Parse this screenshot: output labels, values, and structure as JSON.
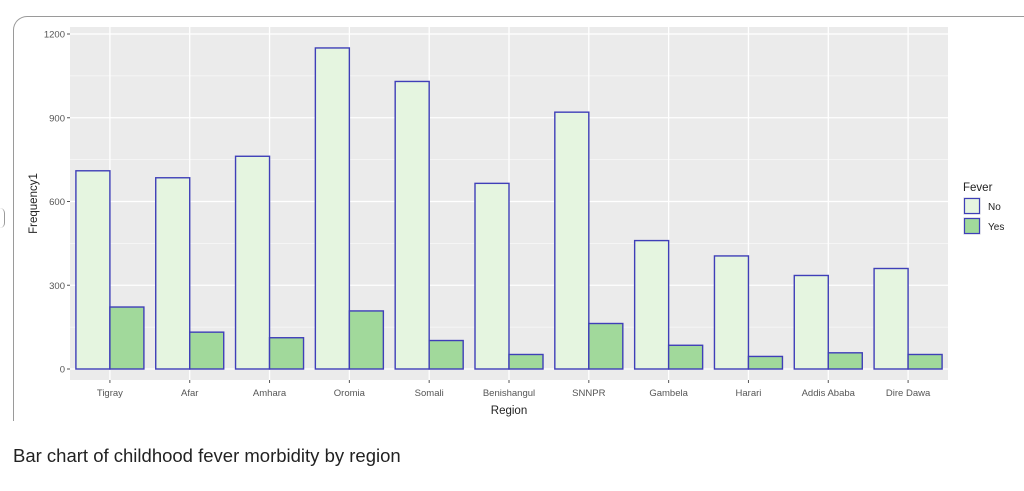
{
  "caption": "Bar chart of childhood fever morbidity by region",
  "chart_data": {
    "type": "bar",
    "title": "",
    "xlabel": "Region",
    "ylabel": "Frequency1",
    "ylim": [
      -40,
      1220
    ],
    "yticks": [
      0,
      300,
      600,
      900,
      1200
    ],
    "grid": true,
    "legend": {
      "title": "Fever",
      "position": "right"
    },
    "categories": [
      "Tigray",
      "Afar",
      "Amhara",
      "Oromia",
      "Somali",
      "Benishangul",
      "SNNPR",
      "Gambela",
      "Harari",
      "Addis Ababa",
      "Dire Dawa"
    ],
    "series": [
      {
        "name": "No",
        "values": [
          710,
          685,
          762,
          1150,
          1030,
          665,
          920,
          460,
          405,
          335,
          360
        ],
        "fill": "#e5f5e0",
        "stroke": "#3f3fb8"
      },
      {
        "name": "Yes",
        "values": [
          222,
          132,
          112,
          208,
          102,
          52,
          163,
          85,
          45,
          58,
          52
        ],
        "fill": "#a1d99b",
        "stroke": "#3f3fb8"
      }
    ],
    "colors": {
      "panel": "#ebebeb",
      "grid": "#ffffff"
    }
  }
}
